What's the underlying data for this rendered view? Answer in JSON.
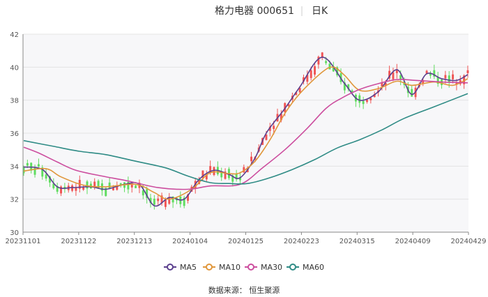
{
  "header": {
    "stock": "格力电器 000651",
    "period": "日K"
  },
  "legend": [
    {
      "key": "ma5",
      "label": "MA5",
      "color": "#5b3f8e"
    },
    {
      "key": "ma10",
      "label": "MA10",
      "color": "#e0963a"
    },
    {
      "key": "ma30",
      "label": "MA30",
      "color": "#cc4d9e"
    },
    {
      "key": "ma60",
      "label": "MA60",
      "color": "#2e8b85"
    }
  ],
  "source": "数据来源： 恒生聚源",
  "colors": {
    "up": "#f05454",
    "down": "#5fdc5f",
    "grid": "#e4e4e4",
    "plot_bg": "#f7f7f9"
  },
  "chart_data": {
    "type": "line",
    "title": "格力电器 000651 日K",
    "x_ticks": [
      "20231101",
      "20231122",
      "20231213",
      "20240104",
      "20240125",
      "20240223",
      "20240315",
      "20240409",
      "20240429"
    ],
    "y_ticks": [
      "30",
      "32",
      "34",
      "36",
      "38",
      "40",
      "42"
    ],
    "ylim": [
      30,
      42
    ],
    "bar_count": 120,
    "series": [
      {
        "name": "MA5",
        "x": [
          0,
          5,
          9,
          13,
          18,
          22,
          27,
          31,
          35,
          39,
          43,
          47,
          51,
          55,
          58,
          62,
          65,
          70,
          74,
          80,
          86,
          90,
          95,
          100,
          104,
          108,
          112,
          116,
          119
        ],
        "values": [
          33.95,
          33.8,
          32.75,
          32.7,
          32.75,
          32.6,
          32.9,
          32.9,
          31.6,
          32.1,
          32.0,
          33.2,
          33.75,
          33.5,
          33.3,
          34.5,
          36.0,
          37.5,
          38.8,
          40.6,
          39.0,
          38.0,
          38.5,
          39.85,
          38.35,
          39.6,
          39.3,
          39.2,
          39.55
        ]
      },
      {
        "name": "MA10",
        "x": [
          0,
          6,
          10,
          16,
          22,
          30,
          35,
          39,
          45,
          50,
          55,
          58,
          62,
          66,
          70,
          74,
          80,
          83,
          86,
          90,
          95,
          100,
          104,
          110,
          115,
          119
        ],
        "values": [
          33.7,
          33.85,
          33.35,
          32.85,
          32.75,
          32.9,
          32.4,
          32.0,
          32.6,
          33.6,
          33.55,
          33.6,
          34.3,
          35.6,
          37.2,
          38.4,
          39.7,
          40.0,
          39.5,
          38.6,
          38.7,
          39.15,
          38.9,
          39.1,
          38.9,
          39.3
        ]
      },
      {
        "name": "MA30",
        "x": [
          0,
          4,
          9,
          14,
          21,
          28,
          36,
          44,
          50,
          58,
          64,
          70,
          76,
          81,
          85,
          90,
          95,
          100,
          105,
          112,
          119
        ],
        "values": [
          35.15,
          34.8,
          34.25,
          33.75,
          33.4,
          33.1,
          32.7,
          32.6,
          32.8,
          32.9,
          33.9,
          35.0,
          36.3,
          37.5,
          38.1,
          38.65,
          39.0,
          39.25,
          39.2,
          39.1,
          39.05
        ]
      },
      {
        "name": "MA60",
        "x": [
          0,
          8,
          15,
          22,
          30,
          38,
          44,
          50,
          55,
          60,
          66,
          72,
          78,
          84,
          90,
          96,
          102,
          110,
          119
        ],
        "values": [
          35.55,
          35.2,
          34.9,
          34.7,
          34.3,
          33.9,
          33.4,
          33.0,
          32.95,
          32.95,
          33.3,
          33.8,
          34.4,
          35.1,
          35.6,
          36.2,
          36.9,
          37.6,
          38.4
        ]
      }
    ]
  }
}
